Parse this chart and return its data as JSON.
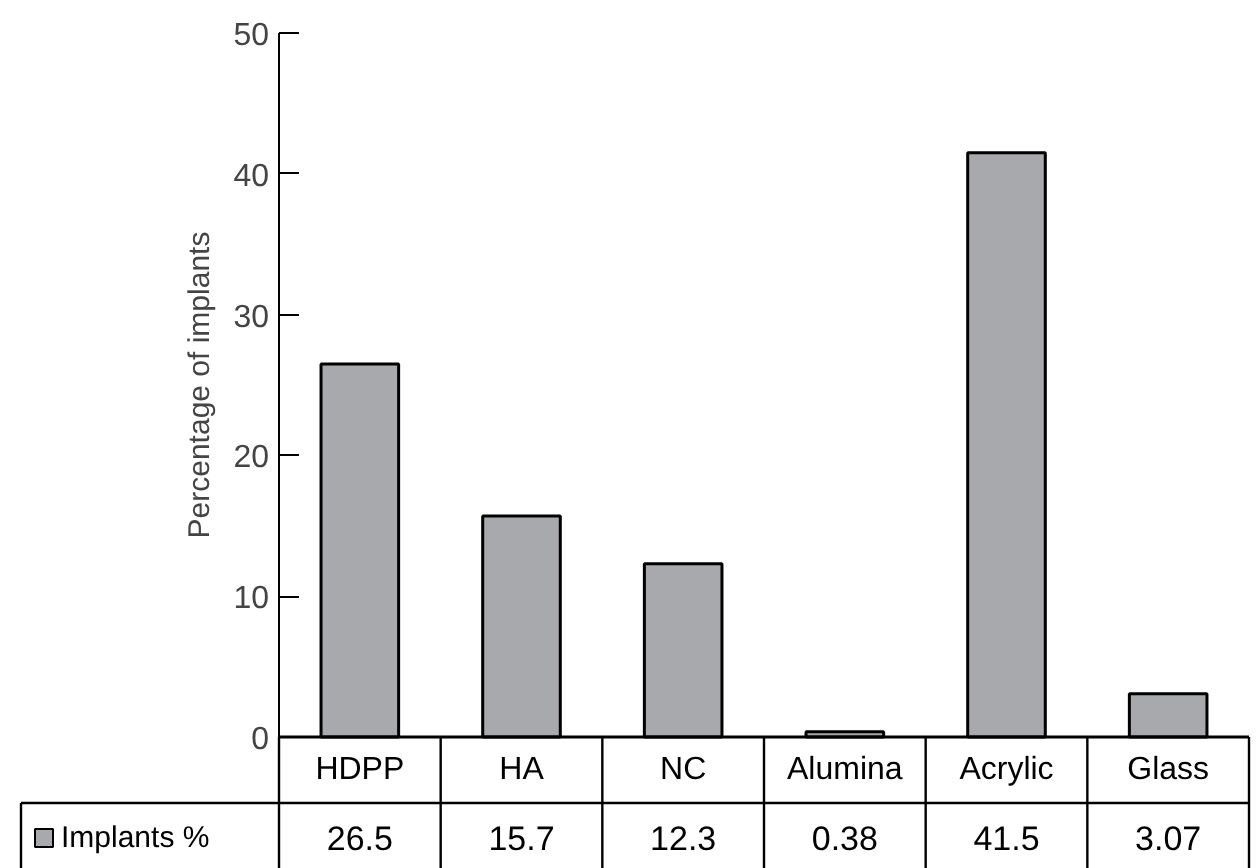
{
  "chart_data": {
    "type": "bar",
    "ylabel": "Percentage of implants",
    "categories": [
      "HDPP",
      "HA",
      "NC",
      "Alumina",
      "Acrylic",
      "Glass"
    ],
    "series": [
      {
        "name": "Implants %",
        "color": "#a7a9ac",
        "values": [
          26.5,
          15.7,
          12.3,
          0.38,
          41.5,
          3.07
        ]
      }
    ],
    "ylim": [
      0,
      50
    ],
    "yticks": [
      0,
      10,
      20,
      30,
      40,
      50
    ],
    "data_labels": true,
    "grid": false,
    "legend": "bottom"
  }
}
